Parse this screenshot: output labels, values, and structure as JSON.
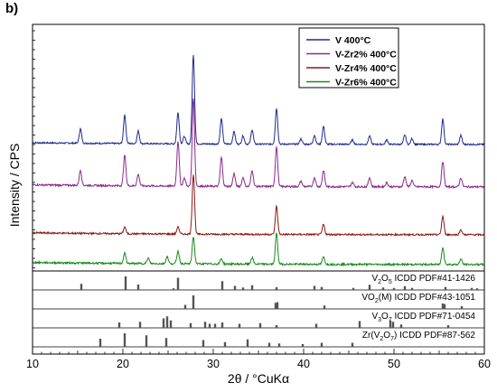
{
  "panel_label": "b)",
  "chart_data": {
    "type": "line",
    "xlabel": "2θ / °CuKα",
    "ylabel": "Intensity / CPS",
    "xlim": [
      10,
      60
    ],
    "x_ticks": [
      10,
      20,
      30,
      40,
      50,
      60
    ],
    "y_tick_labels": false,
    "grid": false,
    "legend_position": "top-right",
    "series": [
      {
        "name": "V 400°C",
        "color": "#1f2a8c",
        "baseline": 1.0,
        "peaks": [
          [
            15.3,
            0.48
          ],
          [
            20.2,
            0.95
          ],
          [
            21.7,
            0.42
          ],
          [
            26.1,
            1.05
          ],
          [
            26.8,
            0.25
          ],
          [
            27.8,
            3.0
          ],
          [
            30.9,
            0.85
          ],
          [
            32.3,
            0.42
          ],
          [
            33.3,
            0.28
          ],
          [
            34.3,
            0.48
          ],
          [
            37.0,
            1.2
          ],
          [
            39.7,
            0.18
          ],
          [
            41.2,
            0.3
          ],
          [
            42.2,
            0.6
          ],
          [
            45.4,
            0.15
          ],
          [
            47.3,
            0.28
          ],
          [
            49.2,
            0.15
          ],
          [
            51.2,
            0.32
          ],
          [
            52.0,
            0.2
          ],
          [
            55.4,
            0.85
          ],
          [
            57.4,
            0.3
          ]
        ]
      },
      {
        "name": "V-Zr2% 400°C",
        "color": "#8a2a8c",
        "baseline": 0.0,
        "peaks": [
          [
            15.3,
            0.42
          ],
          [
            20.2,
            0.85
          ],
          [
            21.7,
            0.32
          ],
          [
            26.1,
            1.25
          ],
          [
            26.8,
            0.22
          ],
          [
            27.8,
            2.45
          ],
          [
            30.9,
            0.8
          ],
          [
            32.3,
            0.35
          ],
          [
            33.3,
            0.25
          ],
          [
            34.3,
            0.45
          ],
          [
            37.0,
            1.1
          ],
          [
            39.7,
            0.15
          ],
          [
            41.2,
            0.25
          ],
          [
            42.2,
            0.45
          ],
          [
            45.4,
            0.12
          ],
          [
            47.3,
            0.25
          ],
          [
            49.2,
            0.12
          ],
          [
            51.2,
            0.28
          ],
          [
            52.0,
            0.18
          ],
          [
            55.4,
            0.7
          ],
          [
            57.4,
            0.25
          ]
        ]
      },
      {
        "name": "V-Zr4% 400°C",
        "color": "#8b1a14",
        "baseline": -0.95,
        "peaks": [
          [
            20.2,
            0.2
          ],
          [
            26.1,
            0.22
          ],
          [
            27.8,
            1.8
          ],
          [
            37.0,
            0.85
          ],
          [
            42.2,
            0.3
          ],
          [
            55.4,
            0.55
          ],
          [
            57.4,
            0.15
          ]
        ]
      },
      {
        "name": "V-Zr6% 400°C",
        "color": "#1a8a1a",
        "baseline": -1.75,
        "peaks": [
          [
            20.2,
            0.28
          ],
          [
            22.8,
            0.15
          ],
          [
            24.9,
            0.2
          ],
          [
            26.1,
            0.35
          ],
          [
            27.8,
            0.75
          ],
          [
            30.9,
            0.15
          ],
          [
            34.3,
            0.18
          ],
          [
            37.0,
            0.85
          ],
          [
            42.2,
            0.2
          ],
          [
            55.4,
            0.48
          ],
          [
            57.4,
            0.15
          ]
        ]
      }
    ],
    "reference_patterns": [
      {
        "label_main": "V",
        "label_sub1": "2",
        "label_mid": "O",
        "label_sub2": "5",
        "label_rest": " ICDD PDF#41-1426",
        "lines": [
          [
            15.4,
            0.45
          ],
          [
            20.3,
            1.0
          ],
          [
            21.7,
            0.4
          ],
          [
            25.6,
            0.12
          ],
          [
            26.1,
            0.9
          ],
          [
            31.0,
            0.65
          ],
          [
            32.4,
            0.3
          ],
          [
            33.3,
            0.18
          ],
          [
            34.3,
            0.35
          ],
          [
            37.0,
            0.2
          ],
          [
            41.2,
            0.3
          ],
          [
            42.0,
            0.22
          ],
          [
            45.5,
            0.15
          ],
          [
            47.3,
            0.38
          ],
          [
            48.8,
            0.18
          ],
          [
            50.0,
            0.15
          ],
          [
            51.2,
            0.28
          ],
          [
            52.0,
            0.15
          ],
          [
            55.7,
            0.22
          ],
          [
            58.6,
            0.15
          ],
          [
            59.2,
            0.12
          ]
        ]
      },
      {
        "label_main": "VO",
        "label_sub1": "2",
        "label_mid": "(M)",
        "label_sub2": "",
        "label_rest": " ICDD PDF#43-1051",
        "lines": [
          [
            26.9,
            0.3
          ],
          [
            27.8,
            1.0
          ],
          [
            36.9,
            0.45
          ],
          [
            37.1,
            0.5
          ],
          [
            42.3,
            0.25
          ],
          [
            55.4,
            0.4
          ],
          [
            55.6,
            0.35
          ],
          [
            57.5,
            0.2
          ]
        ]
      },
      {
        "label_main": "V",
        "label_sub1": "3",
        "label_mid": "O",
        "label_sub2": "7",
        "label_rest": " ICDD PDF#71-0454",
        "lines": [
          [
            19.6,
            0.4
          ],
          [
            21.9,
            0.45
          ],
          [
            24.5,
            0.7
          ],
          [
            24.9,
            0.85
          ],
          [
            25.3,
            0.55
          ],
          [
            27.5,
            0.35
          ],
          [
            29.1,
            0.45
          ],
          [
            29.6,
            0.3
          ],
          [
            30.2,
            0.3
          ],
          [
            31.0,
            0.4
          ],
          [
            32.9,
            0.3
          ],
          [
            35.2,
            0.35
          ],
          [
            37.0,
            0.2
          ],
          [
            41.4,
            0.3
          ],
          [
            46.2,
            0.5
          ],
          [
            49.6,
            0.55
          ],
          [
            49.9,
            0.45
          ],
          [
            50.8,
            0.25
          ],
          [
            56.0,
            0.2
          ]
        ]
      },
      {
        "label_main": "Zr(V",
        "label_sub1": "2",
        "label_mid": "O",
        "label_sub2": "7",
        "label_rest": ") ICDD PDF#87-562",
        "lines": [
          [
            17.5,
            0.6
          ],
          [
            20.2,
            1.0
          ],
          [
            22.6,
            0.85
          ],
          [
            24.8,
            0.65
          ],
          [
            28.9,
            0.5
          ],
          [
            31.3,
            0.35
          ],
          [
            33.8,
            0.55
          ],
          [
            36.2,
            0.3
          ],
          [
            37.3,
            0.25
          ],
          [
            39.9,
            0.2
          ],
          [
            42.0,
            0.3
          ],
          [
            45.4,
            0.3
          ]
        ]
      }
    ],
    "legend": {
      "entries": [
        "V 400°C",
        "V-Zr2% 400°C",
        "V-Zr4% 400°C",
        "V-Zr6% 400°C"
      ]
    }
  }
}
